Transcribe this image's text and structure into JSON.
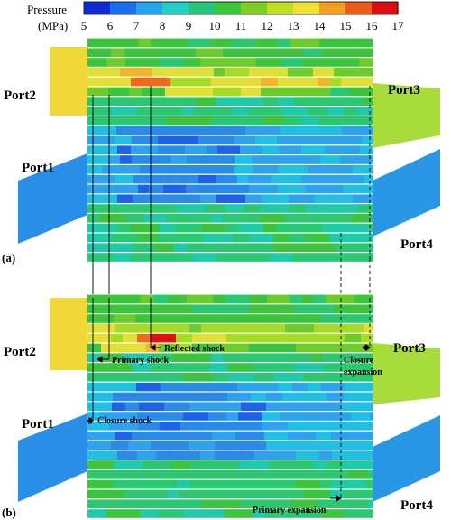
{
  "colorbar": {
    "title_line1": "Pressure",
    "title_line2": "(MPa)",
    "ticks": [
      "5",
      "6",
      "7",
      "8",
      "9",
      "10",
      "11",
      "12",
      "13",
      "14",
      "15",
      "16",
      "17"
    ],
    "colors": [
      "#0a2bd6",
      "#1a6ef0",
      "#23a6f0",
      "#1fcfc8",
      "#24c77a",
      "#38c838",
      "#7dd020",
      "#bfe020",
      "#f0e030",
      "#f2a020",
      "#ee5a18",
      "#dd0d0d"
    ]
  },
  "panel_a": {
    "label": "(a)",
    "ports": {
      "port1": "Port1",
      "port2": "Port2",
      "port3": "Port3",
      "port4": "Port4"
    }
  },
  "panel_b": {
    "label": "(b)",
    "ports": {
      "port1": "Port1",
      "port2": "Port2",
      "port3": "Port3",
      "port4": "Port4"
    },
    "annotations": {
      "reflected_shock": "Reflected shock",
      "primary_shock": "Primary shock",
      "closure_expansion_1": "Closure",
      "closure_expansion_2": "expansion",
      "closure_shock": "Closure shock",
      "primary_expansion": "Primary expansion"
    }
  }
}
